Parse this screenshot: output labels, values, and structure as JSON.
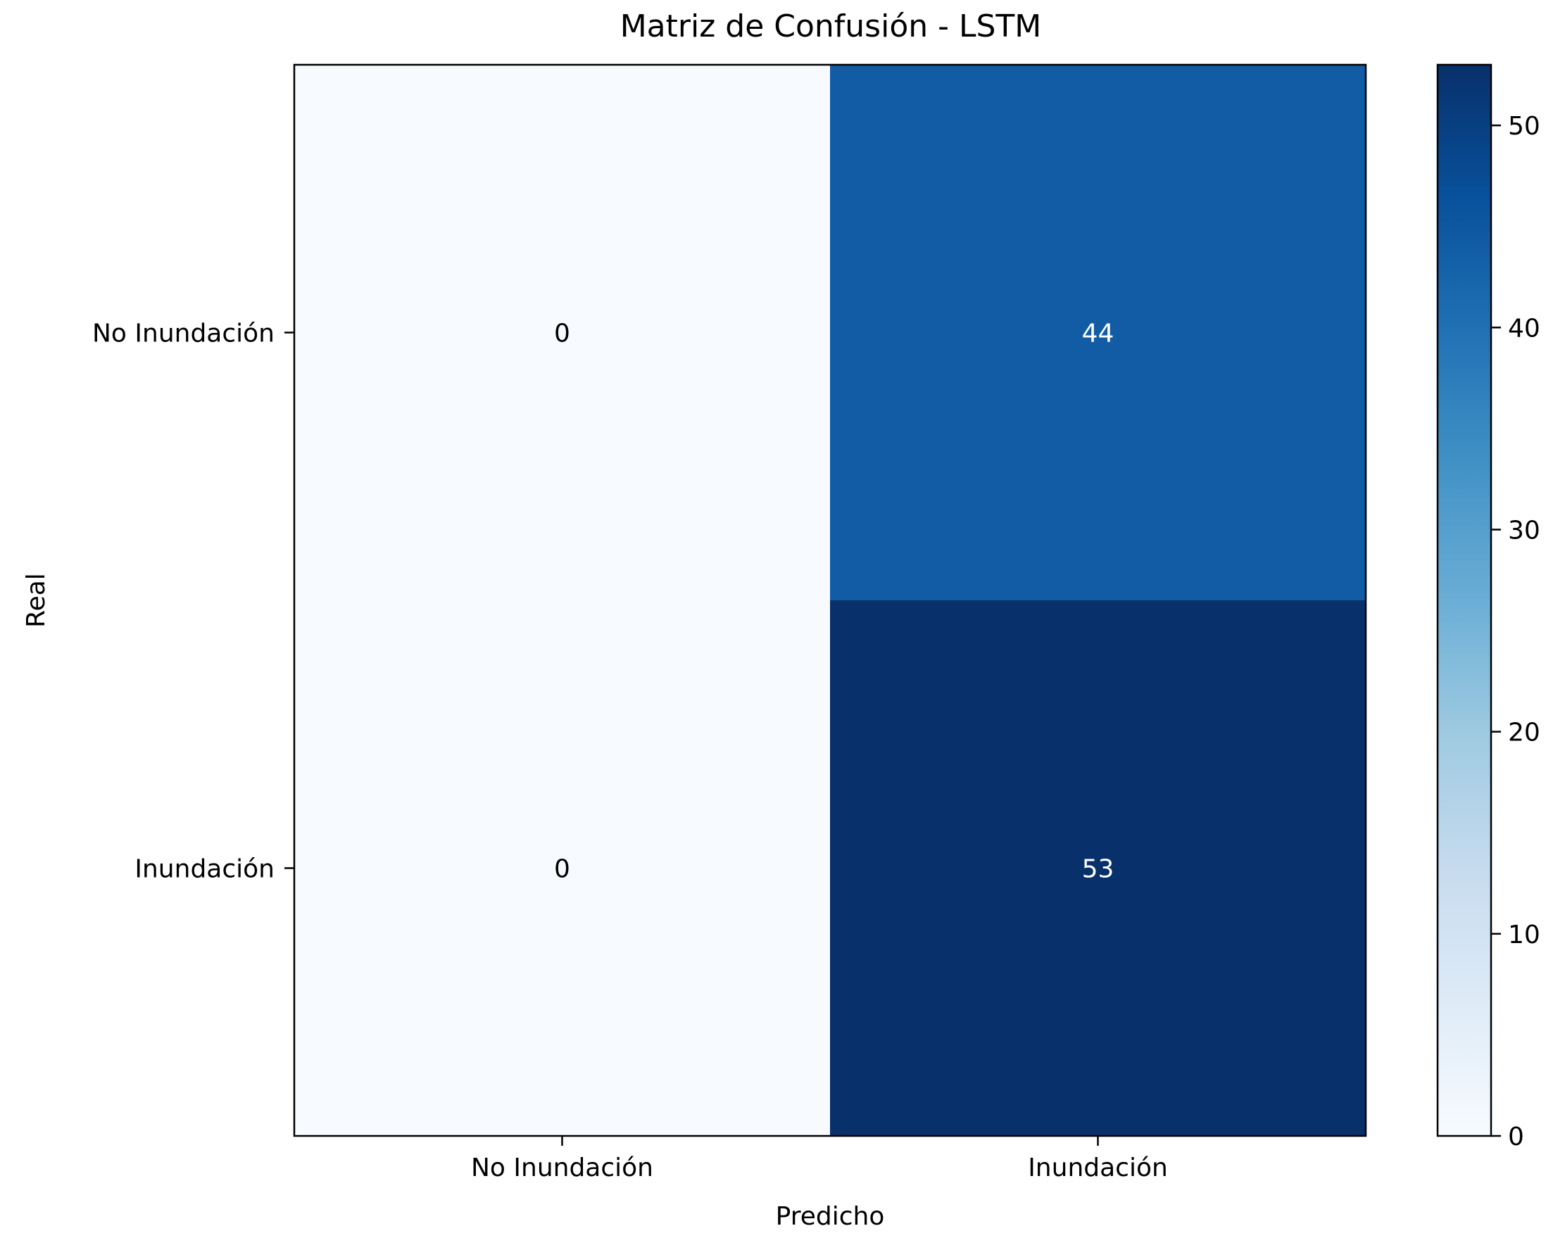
{
  "chart_data": {
    "type": "heatmap",
    "title": "Matriz de Confusión - LSTM",
    "xlabel": "Predicho",
    "ylabel": "Real",
    "x_categories": [
      "No Inundación",
      "Inundación"
    ],
    "y_categories": [
      "No Inundación",
      "Inundación"
    ],
    "values": [
      [
        0,
        44
      ],
      [
        0,
        53
      ]
    ],
    "colormap": "Blues",
    "colorbar": {
      "range": [
        0,
        53
      ],
      "ticks": [
        0,
        10,
        20,
        30,
        40,
        50
      ],
      "tick_labels": [
        "0",
        "10",
        "20",
        "30",
        "40",
        "50"
      ]
    },
    "colors": {
      "cmap_low": "#f7fbff",
      "cmap_high": "#08306b",
      "text_dark": "#000000",
      "text_light": "#ffffff"
    }
  }
}
